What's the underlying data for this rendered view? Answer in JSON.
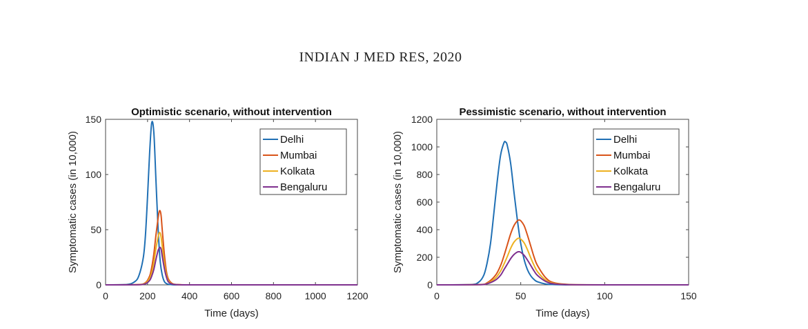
{
  "page": {
    "journal_header": "INDIAN J MED RES, 2020"
  },
  "chart_data": [
    {
      "type": "line",
      "title": "Optimistic scenario, without intervention",
      "xlabel": "Time (days)",
      "ylabel": "Symptomatic cases (in 10,000)",
      "xlim": [
        0,
        1200
      ],
      "ylim": [
        0,
        150
      ],
      "xticks": [
        0,
        200,
        400,
        600,
        800,
        1000,
        1200
      ],
      "yticks": [
        0,
        50,
        100,
        150
      ],
      "legend_position": "top-right",
      "grid": false,
      "series": [
        {
          "name": "Delhi",
          "color": "#1f6fb4",
          "x": [
            0,
            100,
            140,
            160,
            180,
            190,
            200,
            210,
            220,
            230,
            240,
            250,
            260,
            270,
            280,
            290,
            300,
            320,
            350,
            400,
            600,
            800,
            1000,
            1200
          ],
          "y": [
            0,
            0.3,
            3,
            9,
            25,
            45,
            80,
            120,
            147,
            138,
            95,
            52,
            22,
            9,
            3,
            1.2,
            0.5,
            0.1,
            0,
            0,
            0,
            0,
            0,
            0
          ]
        },
        {
          "name": "Mumbai",
          "color": "#d95319",
          "x": [
            0,
            150,
            190,
            210,
            220,
            230,
            240,
            250,
            255,
            260,
            265,
            270,
            280,
            290,
            300,
            320,
            350,
            400,
            600,
            800,
            1000,
            1200
          ],
          "y": [
            0,
            0.2,
            2,
            8,
            16,
            28,
            45,
            60,
            66,
            67,
            62,
            50,
            28,
            12,
            5,
            1,
            0.2,
            0,
            0,
            0,
            0,
            0
          ]
        },
        {
          "name": "Kolkata",
          "color": "#edb120",
          "x": [
            0,
            150,
            190,
            210,
            220,
            230,
            240,
            250,
            255,
            260,
            265,
            270,
            280,
            290,
            300,
            320,
            350,
            400,
            600,
            800,
            1000,
            1200
          ],
          "y": [
            0,
            0.1,
            1.5,
            6,
            11,
            20,
            33,
            43,
            47,
            47,
            43,
            35,
            20,
            9,
            3.5,
            0.8,
            0.1,
            0,
            0,
            0,
            0,
            0
          ]
        },
        {
          "name": "Bengaluru",
          "color": "#7e2f8e",
          "x": [
            0,
            150,
            190,
            210,
            220,
            230,
            240,
            250,
            255,
            260,
            265,
            270,
            280,
            290,
            300,
            320,
            350,
            400,
            600,
            800,
            1000,
            1200
          ],
          "y": [
            0,
            0.1,
            1,
            4,
            8,
            14,
            23,
            31,
            33,
            34,
            32,
            26,
            15,
            7,
            2.5,
            0.6,
            0.1,
            0,
            0,
            0,
            0,
            0
          ]
        }
      ]
    },
    {
      "type": "line",
      "title": "Pessimistic scenario, without intervention",
      "xlabel": "Time (days)",
      "ylabel": "Symptomatic cases (in 10,000)",
      "xlim": [
        0,
        150
      ],
      "ylim": [
        0,
        1200
      ],
      "xticks": [
        0,
        50,
        100,
        150
      ],
      "yticks": [
        0,
        200,
        400,
        600,
        800,
        1000,
        1200
      ],
      "legend_position": "top-right",
      "grid": false,
      "series": [
        {
          "name": "Delhi",
          "color": "#1f6fb4",
          "x": [
            0,
            20,
            25,
            28,
            30,
            32,
            34,
            36,
            38,
            40,
            41,
            42,
            44,
            46,
            48,
            50,
            52,
            54,
            56,
            58,
            60,
            65,
            70,
            80,
            100,
            150
          ],
          "y": [
            0,
            2,
            20,
            70,
            160,
            300,
            520,
            750,
            940,
            1030,
            1035,
            1010,
            880,
            670,
            470,
            300,
            185,
            110,
            65,
            38,
            22,
            6,
            2,
            0,
            0,
            0
          ]
        },
        {
          "name": "Mumbai",
          "color": "#d95319",
          "x": [
            0,
            25,
            30,
            35,
            38,
            40,
            42,
            44,
            46,
            48,
            49,
            50,
            52,
            54,
            56,
            58,
            60,
            65,
            70,
            80,
            100,
            150
          ],
          "y": [
            0,
            2,
            15,
            70,
            140,
            210,
            290,
            370,
            430,
            465,
            470,
            465,
            430,
            360,
            280,
            200,
            140,
            50,
            15,
            2,
            0,
            0
          ]
        },
        {
          "name": "Kolkata",
          "color": "#edb120",
          "x": [
            0,
            25,
            30,
            35,
            38,
            40,
            42,
            44,
            46,
            48,
            49,
            50,
            52,
            54,
            56,
            58,
            60,
            65,
            70,
            80,
            100,
            150
          ],
          "y": [
            0,
            1.5,
            10,
            50,
            100,
            150,
            205,
            265,
            310,
            335,
            338,
            332,
            305,
            255,
            195,
            140,
            95,
            33,
            10,
            1,
            0,
            0
          ]
        },
        {
          "name": "Bengaluru",
          "color": "#7e2f8e",
          "x": [
            0,
            25,
            30,
            35,
            38,
            40,
            42,
            44,
            46,
            48,
            49,
            50,
            52,
            54,
            56,
            58,
            60,
            65,
            70,
            80,
            100,
            150
          ],
          "y": [
            0,
            1,
            8,
            35,
            70,
            110,
            150,
            190,
            220,
            238,
            240,
            236,
            215,
            180,
            140,
            100,
            68,
            24,
            7,
            1,
            0,
            0
          ]
        }
      ]
    }
  ]
}
